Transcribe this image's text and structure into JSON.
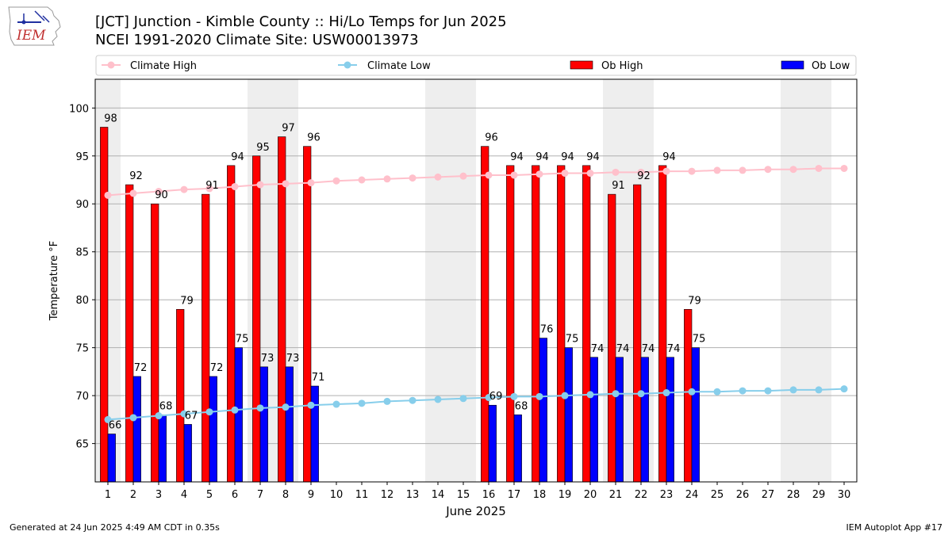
{
  "header": {
    "title_line1": "[JCT] Junction - Kimble County :: Hi/Lo Temps for Jun 2025",
    "title_line2": "NCEI 1991-2020 Climate Site: USW00013973"
  },
  "logo": {
    "text": "IEM"
  },
  "footer": {
    "left": "Generated at 24 Jun 2025 4:49 AM CDT in 0.35s",
    "right": "IEM Autoplot App #17"
  },
  "colors": {
    "climate_high": "#ffc0cb",
    "climate_low": "#87ceeb",
    "ob_high": "#ff0000",
    "ob_low": "#0000ff",
    "weekend_shade": "#eeeeee",
    "grid": "#b0b0b0"
  },
  "chart_data": {
    "type": "bar",
    "xlabel": "June 2025",
    "ylabel": "Temperature °F",
    "ylim": [
      61,
      103
    ],
    "yticks": [
      65,
      70,
      75,
      80,
      85,
      90,
      95,
      100
    ],
    "x": [
      1,
      2,
      3,
      4,
      5,
      6,
      7,
      8,
      9,
      10,
      11,
      12,
      13,
      14,
      15,
      16,
      17,
      18,
      19,
      20,
      21,
      22,
      23,
      24,
      25,
      26,
      27,
      28,
      29,
      30
    ],
    "weekend_days": [
      1,
      7,
      8,
      14,
      15,
      21,
      22,
      28,
      29
    ],
    "grid": "horizontal",
    "legend_position": "top",
    "series": [
      {
        "name": "Climate High",
        "kind": "line",
        "values": [
          90.9,
          91.1,
          91.3,
          91.5,
          91.6,
          91.8,
          92.0,
          92.1,
          92.2,
          92.4,
          92.5,
          92.6,
          92.7,
          92.8,
          92.9,
          93.0,
          93.0,
          93.1,
          93.2,
          93.2,
          93.3,
          93.3,
          93.4,
          93.4,
          93.5,
          93.5,
          93.6,
          93.6,
          93.7,
          93.7
        ]
      },
      {
        "name": "Climate Low",
        "kind": "line",
        "values": [
          67.5,
          67.7,
          67.9,
          68.1,
          68.3,
          68.5,
          68.7,
          68.8,
          69.0,
          69.1,
          69.2,
          69.4,
          69.5,
          69.6,
          69.7,
          69.8,
          69.9,
          69.9,
          70.0,
          70.1,
          70.2,
          70.2,
          70.3,
          70.4,
          70.4,
          70.5,
          70.5,
          70.6,
          70.6,
          70.7
        ]
      },
      {
        "name": "Ob High",
        "kind": "bar",
        "values": [
          98,
          92,
          90,
          79,
          91,
          94,
          95,
          97,
          96,
          null,
          null,
          null,
          null,
          null,
          null,
          96,
          94,
          94,
          94,
          94,
          91,
          92,
          94,
          79,
          null,
          null,
          null,
          null,
          null,
          null
        ]
      },
      {
        "name": "Ob Low",
        "kind": "bar",
        "values": [
          66,
          72,
          68,
          67,
          72,
          75,
          73,
          73,
          71,
          null,
          null,
          null,
          null,
          null,
          null,
          69,
          68,
          76,
          75,
          74,
          74,
          74,
          74,
          75,
          null,
          null,
          null,
          null,
          null,
          null
        ]
      }
    ]
  }
}
